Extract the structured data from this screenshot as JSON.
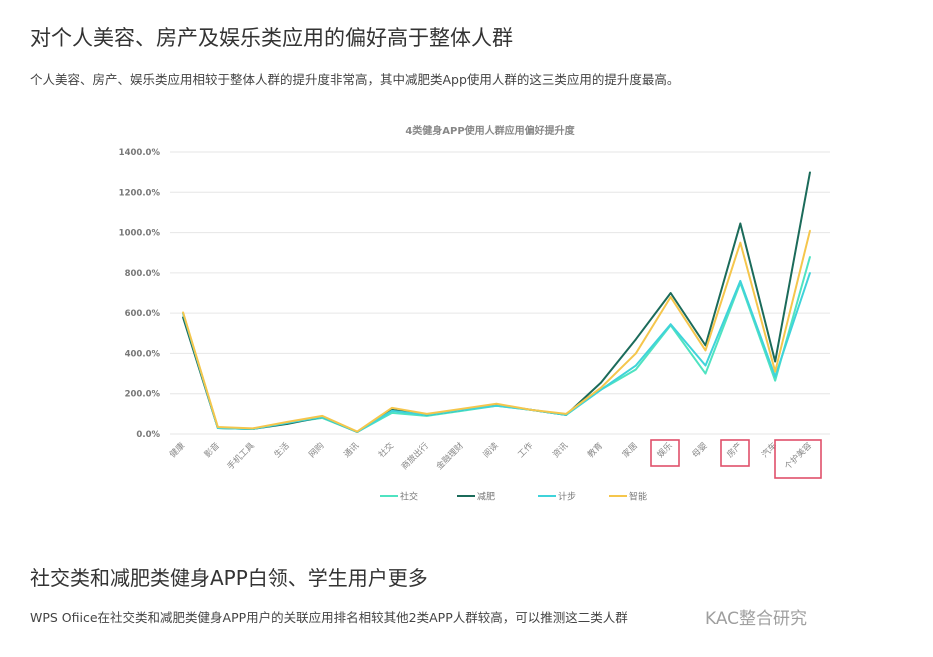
{
  "section1": {
    "heading": "对个人美容、房产及娱乐类应用的偏好高于整体人群",
    "body": "个人美容、房产、娱乐类应用相较于整体人群的提升度非常高，其中减肥类App使用人群的这三类应用的提升度最高。"
  },
  "section2": {
    "heading": "社交类和减肥类健身APP白领、学生用户更多",
    "body": "WPS Ofiice在社交类和减肥类健身APP用户的关联应用排名相较其他2类APP人群较高，可以推测这二类人群"
  },
  "watermark": "KAC整合研究",
  "chart_data": {
    "type": "line",
    "title": "4类健身APP使用人群应用偏好提升度",
    "categories": [
      "健康",
      "影音",
      "手机工具",
      "生活",
      "网购",
      "通讯",
      "社交",
      "商旅出行",
      "金融理财",
      "阅读",
      "工作",
      "资讯",
      "教育",
      "家居",
      "娱乐",
      "母婴",
      "房产",
      "汽车",
      "个护美容"
    ],
    "highlighted_categories": [
      "娱乐",
      "房产",
      "个护美容"
    ],
    "highlight_color": "#e0506a",
    "ylim": [
      0,
      1400
    ],
    "yticks": [
      "0.0%",
      "200.0%",
      "400.0%",
      "600.0%",
      "800.0%",
      "1000.0%",
      "1200.0%",
      "1400.0%"
    ],
    "ytick_values": [
      0,
      200,
      400,
      600,
      800,
      1000,
      1200,
      1400
    ],
    "y_unit": "%",
    "grid": true,
    "legend_position": "bottom",
    "series": [
      {
        "name": "社交",
        "color": "#4fe3c1",
        "values": [
          600,
          30,
          25,
          55,
          80,
          10,
          105,
          90,
          115,
          140,
          120,
          95,
          220,
          320,
          540,
          300,
          750,
          265,
          880
        ]
      },
      {
        "name": "减肥",
        "color": "#1b6b5a",
        "values": [
          580,
          30,
          25,
          50,
          85,
          10,
          120,
          95,
          120,
          145,
          120,
          95,
          255,
          470,
          700,
          440,
          1045,
          360,
          1300
        ]
      },
      {
        "name": "计步",
        "color": "#3fd3da",
        "values": [
          600,
          30,
          25,
          55,
          85,
          10,
          115,
          95,
          120,
          140,
          120,
          95,
          220,
          340,
          545,
          340,
          760,
          285,
          800
        ]
      },
      {
        "name": "智能",
        "color": "#f5c64c",
        "values": [
          605,
          35,
          28,
          60,
          90,
          12,
          130,
          100,
          125,
          150,
          120,
          100,
          230,
          400,
          680,
          415,
          950,
          310,
          1010
        ]
      }
    ]
  }
}
